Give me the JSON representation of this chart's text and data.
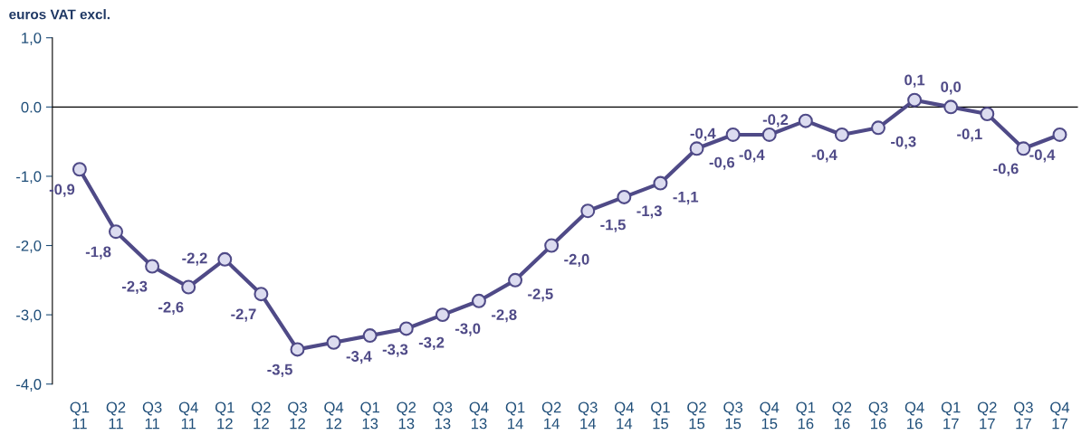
{
  "chart_data": {
    "type": "line",
    "ylabel": "euros VAT excl.",
    "categories": [
      "Q1\n11",
      "Q2\n11",
      "Q3\n11",
      "Q4\n11",
      "Q1\n12",
      "Q2\n12",
      "Q3\n12",
      "Q4\n12",
      "Q1\n13",
      "Q2\n13",
      "Q3\n13",
      "Q4\n13",
      "Q1\n14",
      "Q2\n14",
      "Q3\n14",
      "Q4\n14",
      "Q1\n15",
      "Q2\n15",
      "Q3\n15",
      "Q4\n15",
      "Q1\n16",
      "Q2\n16",
      "Q3\n16",
      "Q4\n16",
      "Q1\n17",
      "Q2\n17",
      "Q3\n17",
      "Q4\n17"
    ],
    "series": [
      {
        "color": "#4f4a87",
        "values": [
          -0.9,
          -1.8,
          -2.3,
          -2.6,
          -2.2,
          -2.7,
          -3.5,
          -3.4,
          -3.3,
          -3.2,
          -3.0,
          -2.8,
          -2.5,
          -2.0,
          -1.5,
          -1.3,
          -1.1,
          -0.6,
          -0.4,
          -0.4,
          -0.2,
          -0.4,
          -0.3,
          0.1,
          0.0,
          -0.1,
          -0.6,
          -0.4
        ],
        "value_labels": [
          "-0,9",
          "-1,8",
          "-2,3",
          "-2,6",
          "-2,2",
          "-2,7",
          "-3,5",
          "-3,4",
          "-3,3",
          "-3,2",
          "-3,0",
          "-2,8",
          "-2,5",
          "-2,0",
          "-1,5",
          "-1,3",
          "-1,1",
          "-0,6",
          "-0,4",
          "-0,4",
          "-0,2",
          "-0,4",
          "-0,3",
          "0,1",
          "0,0",
          "-0,1",
          "-0,6",
          "-0,4"
        ]
      }
    ],
    "ylim": [
      -4,
      1
    ],
    "yticks": [
      {
        "value": 1,
        "label": "1,0"
      },
      {
        "value": 0,
        "label": "0.0"
      },
      {
        "value": -1,
        "label": "-1,0"
      },
      {
        "value": -2,
        "label": "-2,0"
      },
      {
        "value": -3,
        "label": "-3,0"
      },
      {
        "value": -4,
        "label": "-4,0"
      }
    ],
    "ref_lines": [
      {
        "axis": "y",
        "value": 0,
        "color": "#000000"
      }
    ],
    "marker": "circle",
    "line_style": "solid",
    "grid": false,
    "legend": false
  }
}
